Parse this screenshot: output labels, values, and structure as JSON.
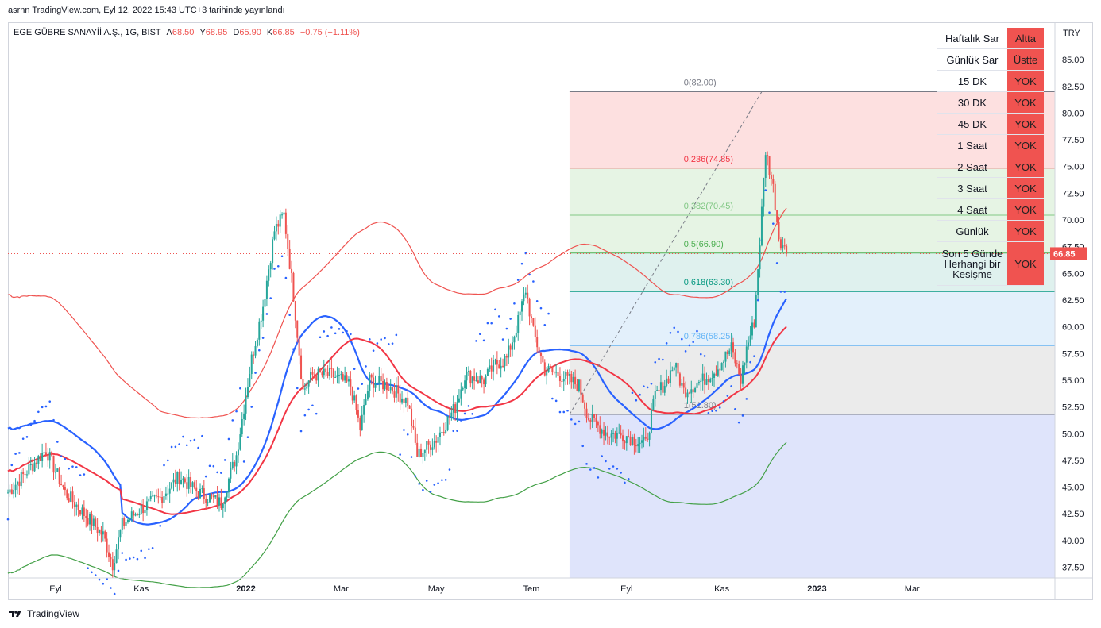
{
  "header": {
    "published": "asrnn TradingView.com, Eyl 12, 2022 15:43 UTC+3 tarihinde yayınlandı",
    "symbol": "EGE GÜBRE SANAYİİ A.Ş., 1G, BIST",
    "open_label": "A",
    "open": "68.50",
    "high_label": "Y",
    "high": "68.95",
    "low_label": "D",
    "low": "65.90",
    "close_label": "K",
    "close": "66.85",
    "change": "−0.75 (−1.11%)"
  },
  "status_table": [
    {
      "key": "Haftalık Sar",
      "value": "Altta"
    },
    {
      "key": "Günlük Sar",
      "value": "Üstte"
    },
    {
      "key": "15 DK",
      "value": "YOK"
    },
    {
      "key": "30 DK",
      "value": "YOK"
    },
    {
      "key": "45 DK",
      "value": "YOK"
    },
    {
      "key": "1 Saat",
      "value": "YOK"
    },
    {
      "key": "2 Saat",
      "value": "YOK"
    },
    {
      "key": "3 Saat",
      "value": "YOK"
    },
    {
      "key": "4 Saat",
      "value": "YOK"
    },
    {
      "key": "Günlük",
      "value": "YOK"
    },
    {
      "key": "Son 5 Günde Herhangi bir Kesişme",
      "value": "YOK"
    }
  ],
  "footer": {
    "brand": "TradingView"
  },
  "colors": {
    "up": "#26a69a",
    "down": "#ef5350",
    "sar": "#2962ff",
    "ema_blue": "#2962ff",
    "ema_red": "#f23645",
    "band_green": "#43a047",
    "band_red": "#ef5350"
  },
  "chart_data": {
    "type": "candlestick",
    "currency": "TRY",
    "ylim": [
      36.5,
      88.5
    ],
    "y_ticks": [
      "85.00",
      "82.50",
      "80.00",
      "77.50",
      "75.00",
      "72.50",
      "70.00",
      "67.50",
      "65.00",
      "62.50",
      "60.00",
      "57.50",
      "55.00",
      "52.50",
      "50.00",
      "47.50",
      "45.00",
      "42.50",
      "40.00",
      "37.50"
    ],
    "x_ticks": [
      "Eyl",
      "Kas",
      "2022",
      "Mar",
      "May",
      "Tem",
      "Eyl",
      "Kas",
      "2023",
      "Mar"
    ],
    "last_price": "66.85",
    "fibonacci": [
      {
        "ratio": "0",
        "price": 82.0,
        "label": "0(82.00)",
        "color": "#787b86",
        "fill": "#fde0e0"
      },
      {
        "ratio": "0.236",
        "price": 74.85,
        "label": "0.236(74.85)",
        "color": "#f23645",
        "fill": "#e6f4e4"
      },
      {
        "ratio": "0.382",
        "price": 70.45,
        "label": "0.382(70.45)",
        "color": "#81c784",
        "fill": "#e6f4e4"
      },
      {
        "ratio": "0.5",
        "price": 66.9,
        "label": "0.5(66.90)",
        "color": "#4caf50",
        "fill": "#dff1ee"
      },
      {
        "ratio": "0.618",
        "price": 63.3,
        "label": "0.618(63.30)",
        "color": "#089981",
        "fill": "#e3f0fb"
      },
      {
        "ratio": "0.786",
        "price": 58.25,
        "label": "0.786(58.25)",
        "color": "#64b5f6",
        "fill": "#ebebeb"
      },
      {
        "ratio": "1",
        "price": 51.8,
        "label": "1(51.80)",
        "color": "#787b86",
        "fill": "#dfe4fb"
      }
    ],
    "fib_range": {
      "start": "Tem",
      "from_price": 51.8,
      "to_price": 82.0
    },
    "price_anchors": [
      [
        0,
        44.5
      ],
      [
        10,
        46.5
      ],
      [
        20,
        48.5
      ],
      [
        30,
        44.5
      ],
      [
        40,
        42.5
      ],
      [
        50,
        40.5
      ],
      [
        55,
        37.8
      ],
      [
        60,
        41.5
      ],
      [
        70,
        43.0
      ],
      [
        80,
        44.0
      ],
      [
        90,
        46.0
      ],
      [
        100,
        44.5
      ],
      [
        112,
        43.5
      ],
      [
        120,
        48.0
      ],
      [
        128,
        57.0
      ],
      [
        134,
        62.0
      ],
      [
        140,
        69.0
      ],
      [
        145,
        70.5
      ],
      [
        150,
        63.0
      ],
      [
        155,
        54.0
      ],
      [
        160,
        55.5
      ],
      [
        170,
        55.5
      ],
      [
        180,
        54.5
      ],
      [
        185,
        50.5
      ],
      [
        190,
        55.0
      ],
      [
        200,
        54.5
      ],
      [
        210,
        53.0
      ],
      [
        215,
        48.0
      ],
      [
        225,
        49.5
      ],
      [
        235,
        52.5
      ],
      [
        240,
        55.5
      ],
      [
        250,
        55.0
      ],
      [
        256,
        56.5
      ],
      [
        262,
        57.0
      ],
      [
        268,
        60.5
      ],
      [
        272,
        63.5
      ],
      [
        276,
        59.5
      ],
      [
        282,
        56.0
      ],
      [
        290,
        55.5
      ],
      [
        300,
        54.5
      ],
      [
        305,
        51.5
      ],
      [
        315,
        50.0
      ],
      [
        325,
        49.8
      ],
      [
        335,
        49.0
      ],
      [
        340,
        53.5
      ],
      [
        346,
        55.0
      ],
      [
        350,
        56.5
      ],
      [
        355,
        54.0
      ],
      [
        365,
        55.0
      ],
      [
        372,
        56.0
      ],
      [
        380,
        58.0
      ],
      [
        385,
        55.0
      ],
      [
        388,
        58.0
      ],
      [
        392,
        60.5
      ],
      [
        395,
        68.0
      ],
      [
        398,
        76.5
      ],
      [
        402,
        73.0
      ],
      [
        405,
        68.5
      ],
      [
        409,
        66.85
      ]
    ],
    "xlim": [
      0,
      550
    ],
    "x_tick_pos": [
      25,
      70,
      125,
      175,
      225,
      275,
      325,
      375,
      425,
      475
    ]
  }
}
